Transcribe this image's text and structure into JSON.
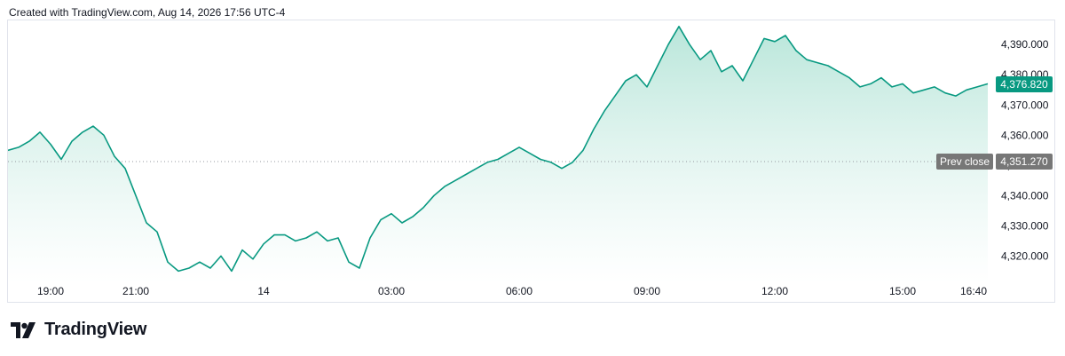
{
  "header": {
    "created_text": "Created with TradingView.com, Aug 14, 2026 17:56 UTC-4"
  },
  "brand": {
    "name": "TradingView",
    "logo_icon": "tradingview-logo-icon"
  },
  "colors": {
    "line": "#089981",
    "fill_top": "#b9e6da",
    "fill_bottom": "#ffffff",
    "badge_last": "#089981",
    "badge_prev": "#777777",
    "dotted_line": "#9598a1"
  },
  "chart_data": {
    "type": "area",
    "ylim": [
      4311,
      4398
    ],
    "y_ticks": [
      4320,
      4330,
      4340,
      4350,
      4360,
      4370,
      4380,
      4390
    ],
    "y_tick_labels": [
      "4,320.000",
      "4,330.000",
      "4,340.000",
      "4,350.000",
      "4,360.000",
      "4,370.000",
      "4,380.000",
      "4,390.000"
    ],
    "x_ticks": [
      "19:00",
      "21:00",
      "14",
      "03:00",
      "06:00",
      "09:00",
      "12:00",
      "15:00",
      "16:40"
    ],
    "last_price": 4376.82,
    "last_price_label": "4,376.820",
    "prev_close": 4351.27,
    "prev_close_label": "4,351.270",
    "prev_close_text": "Prev close",
    "series": [
      {
        "x": [
          "18:00",
          "18:15",
          "18:30",
          "18:45",
          "19:00",
          "19:15",
          "19:30",
          "19:45",
          "20:00",
          "20:15",
          "20:30",
          "20:45",
          "21:00",
          "21:15",
          "21:30",
          "21:45",
          "22:00",
          "22:15",
          "22:30",
          "22:45",
          "23:00",
          "23:15",
          "23:30",
          "23:45",
          "00:00",
          "00:15",
          "00:30",
          "00:45",
          "01:00",
          "01:15",
          "01:30",
          "01:45",
          "02:00",
          "02:15",
          "02:30",
          "02:45",
          "03:00",
          "03:15",
          "03:30",
          "03:45",
          "04:00",
          "04:15",
          "04:30",
          "04:45",
          "05:00",
          "05:15",
          "05:30",
          "05:45",
          "06:00",
          "06:15",
          "06:30",
          "06:45",
          "07:00",
          "07:15",
          "07:30",
          "07:45",
          "08:00",
          "08:15",
          "08:30",
          "08:45",
          "09:00",
          "09:15",
          "09:30",
          "09:45",
          "10:00",
          "10:15",
          "10:30",
          "10:45",
          "11:00",
          "11:15",
          "11:30",
          "11:45",
          "12:00",
          "12:15",
          "12:30",
          "12:45",
          "13:00",
          "13:15",
          "13:30",
          "13:45",
          "14:00",
          "14:15",
          "14:30",
          "14:45",
          "15:00",
          "15:15",
          "15:30",
          "15:45",
          "16:00",
          "16:15",
          "16:30",
          "16:45",
          "17:00"
        ],
        "values": [
          4355,
          4356,
          4358,
          4361,
          4357,
          4352,
          4358,
          4361,
          4363,
          4360,
          4353,
          4349,
          4340,
          4331,
          4328,
          4318,
          4315,
          4316,
          4318,
          4316,
          4320,
          4315,
          4322,
          4319,
          4324,
          4327,
          4327,
          4325,
          4326,
          4328,
          4325,
          4326,
          4318,
          4316,
          4326,
          4332,
          4334,
          4331,
          4333,
          4336,
          4340,
          4343,
          4345,
          4347,
          4349,
          4351,
          4352,
          4354,
          4356,
          4354,
          4352,
          4351,
          4349,
          4351,
          4355,
          4362,
          4368,
          4373,
          4378,
          4380,
          4376,
          4383,
          4390,
          4396,
          4390,
          4385,
          4388,
          4381,
          4383,
          4378,
          4385,
          4392,
          4391,
          4393,
          4388,
          4385,
          4384,
          4383,
          4381,
          4379,
          4376,
          4377,
          4379,
          4376,
          4377,
          4374,
          4375,
          4376,
          4374,
          4373,
          4375,
          4376,
          4377
        ]
      }
    ]
  }
}
